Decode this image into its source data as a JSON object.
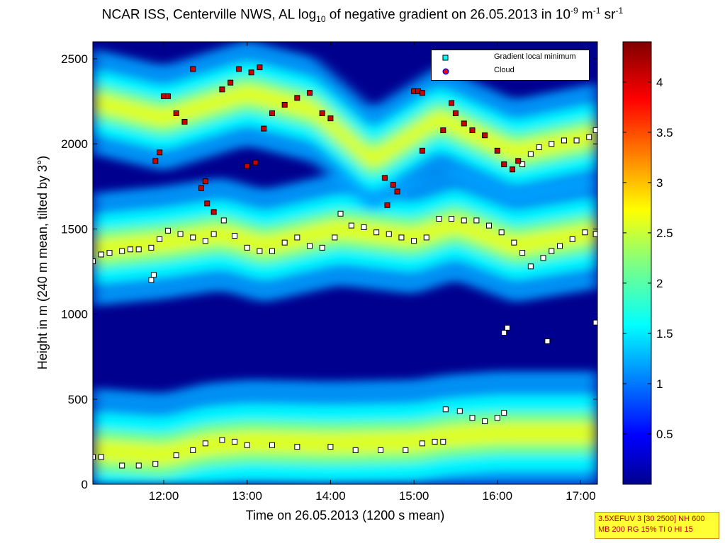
{
  "title": {
    "prefix": "NCAR ISS, Centerville NWS, AL log",
    "sub": "10",
    "mid": " of negative gradient on 26.05.2013 in 10",
    "sup1": "-9",
    "unit1": " m",
    "sup2": "-1",
    "unit2": " sr",
    "sup3": "-1"
  },
  "chart_data": {
    "type": "heatmap",
    "xlabel": "Time on 26.05.2013 (1200 s mean)",
    "ylabel": "Height in m (240 m mean, tilted by 3°)",
    "x_ticks": [
      "12:00",
      "13:00",
      "14:00",
      "15:00",
      "16:00",
      "17:00"
    ],
    "x_tick_hours": [
      12,
      13,
      14,
      15,
      16,
      17
    ],
    "xlim_hours": [
      11.15,
      17.2
    ],
    "y_ticks": [
      0,
      500,
      1000,
      1500,
      2000,
      2500
    ],
    "ylim": [
      0,
      2600
    ],
    "colorbar": {
      "ticks": [
        0.5,
        1,
        1.5,
        2,
        2.5,
        3,
        3.5,
        4
      ],
      "range": [
        0,
        4.4
      ],
      "colormap": "jet"
    },
    "layers": [
      {
        "name": "surface",
        "points": [
          [
            11.15,
            200
          ],
          [
            12.0,
            170
          ],
          [
            12.5,
            230
          ],
          [
            13.0,
            250
          ],
          [
            14.0,
            240
          ],
          [
            15.0,
            250
          ],
          [
            15.4,
            280
          ],
          [
            16.0,
            300
          ],
          [
            17.2,
            300
          ]
        ],
        "thickness": 140,
        "strength": 1.0
      },
      {
        "name": "mixed",
        "points": [
          [
            11.15,
            1380
          ],
          [
            12.0,
            1420
          ],
          [
            12.7,
            1470
          ],
          [
            13.2,
            1400
          ],
          [
            14.1,
            1500
          ],
          [
            15.0,
            1450
          ],
          [
            15.5,
            1530
          ],
          [
            16.2,
            1400
          ],
          [
            17.2,
            1480
          ]
        ],
        "thickness": 150,
        "strength": 0.85
      },
      {
        "name": "upper",
        "points": [
          [
            11.15,
            2250
          ],
          [
            12.0,
            2150
          ],
          [
            13.0,
            2300
          ],
          [
            13.8,
            2200
          ],
          [
            14.5,
            1900
          ],
          [
            15.3,
            2150
          ],
          [
            16.2,
            1950
          ],
          [
            17.2,
            2050
          ]
        ],
        "thickness": 170,
        "strength": 0.7
      }
    ],
    "series": [
      {
        "name": "Gradient local minimum",
        "marker": "square",
        "color": "#ffffff",
        "points": [
          [
            11.15,
            1310
          ],
          [
            11.25,
            1350
          ],
          [
            11.35,
            1360
          ],
          [
            11.5,
            1370
          ],
          [
            11.6,
            1380
          ],
          [
            11.7,
            1380
          ],
          [
            11.85,
            1390
          ],
          [
            11.95,
            1440
          ],
          [
            12.05,
            1490
          ],
          [
            12.2,
            1470
          ],
          [
            12.35,
            1450
          ],
          [
            12.5,
            1430
          ],
          [
            12.6,
            1470
          ],
          [
            12.72,
            1550
          ],
          [
            12.85,
            1460
          ],
          [
            13.0,
            1390
          ],
          [
            13.15,
            1370
          ],
          [
            13.3,
            1370
          ],
          [
            13.45,
            1420
          ],
          [
            13.6,
            1450
          ],
          [
            13.75,
            1400
          ],
          [
            13.9,
            1390
          ],
          [
            14.05,
            1450
          ],
          [
            14.12,
            1590
          ],
          [
            14.25,
            1520
          ],
          [
            14.4,
            1510
          ],
          [
            14.55,
            1480
          ],
          [
            14.7,
            1470
          ],
          [
            14.85,
            1450
          ],
          [
            15.0,
            1430
          ],
          [
            15.15,
            1450
          ],
          [
            15.3,
            1560
          ],
          [
            15.45,
            1560
          ],
          [
            15.6,
            1550
          ],
          [
            15.75,
            1550
          ],
          [
            15.9,
            1520
          ],
          [
            16.05,
            1480
          ],
          [
            16.2,
            1420
          ],
          [
            16.3,
            1360
          ],
          [
            16.4,
            1280
          ],
          [
            16.55,
            1330
          ],
          [
            16.65,
            1370
          ],
          [
            16.75,
            1400
          ],
          [
            16.9,
            1440
          ],
          [
            17.05,
            1480
          ],
          [
            17.18,
            1470
          ],
          [
            11.85,
            1200
          ],
          [
            11.88,
            1230
          ],
          [
            11.15,
            160
          ],
          [
            11.25,
            160
          ],
          [
            11.5,
            110
          ],
          [
            11.7,
            110
          ],
          [
            11.9,
            120
          ],
          [
            12.15,
            170
          ],
          [
            12.35,
            200
          ],
          [
            12.5,
            240
          ],
          [
            12.7,
            260
          ],
          [
            12.85,
            250
          ],
          [
            13.0,
            230
          ],
          [
            13.3,
            230
          ],
          [
            13.6,
            220
          ],
          [
            14.0,
            220
          ],
          [
            14.3,
            200
          ],
          [
            14.6,
            200
          ],
          [
            14.9,
            200
          ],
          [
            15.1,
            240
          ],
          [
            15.25,
            250
          ],
          [
            15.35,
            250
          ],
          [
            15.38,
            440
          ],
          [
            15.55,
            430
          ],
          [
            15.7,
            390
          ],
          [
            15.85,
            370
          ],
          [
            16.0,
            390
          ],
          [
            16.08,
            420
          ],
          [
            16.08,
            890
          ],
          [
            16.12,
            920
          ],
          [
            16.6,
            840
          ],
          [
            17.18,
            950
          ],
          [
            16.3,
            1880
          ],
          [
            16.4,
            1940
          ],
          [
            16.5,
            1980
          ],
          [
            16.65,
            2000
          ],
          [
            16.8,
            2020
          ],
          [
            16.95,
            2020
          ],
          [
            17.1,
            2040
          ],
          [
            17.18,
            2080
          ]
        ]
      },
      {
        "name": "Cloud",
        "marker": "square",
        "color": "#cc0000",
        "points": [
          [
            11.9,
            1900
          ],
          [
            11.95,
            1950
          ],
          [
            12.0,
            2280
          ],
          [
            12.05,
            2280
          ],
          [
            12.15,
            2180
          ],
          [
            12.25,
            2130
          ],
          [
            12.35,
            2440
          ],
          [
            12.45,
            1740
          ],
          [
            12.5,
            1780
          ],
          [
            12.52,
            1650
          ],
          [
            12.6,
            1600
          ],
          [
            12.7,
            2320
          ],
          [
            12.8,
            2360
          ],
          [
            12.9,
            2440
          ],
          [
            13.05,
            2420
          ],
          [
            13.15,
            2450
          ],
          [
            13.0,
            1870
          ],
          [
            13.1,
            1890
          ],
          [
            13.2,
            2090
          ],
          [
            13.3,
            2180
          ],
          [
            13.45,
            2230
          ],
          [
            13.6,
            2270
          ],
          [
            13.75,
            2300
          ],
          [
            13.9,
            2180
          ],
          [
            14.0,
            2150
          ],
          [
            14.65,
            1800
          ],
          [
            14.75,
            1760
          ],
          [
            14.8,
            1720
          ],
          [
            14.68,
            1640
          ],
          [
            15.0,
            2310
          ],
          [
            15.05,
            2310
          ],
          [
            15.1,
            2300
          ],
          [
            15.45,
            2240
          ],
          [
            15.5,
            2180
          ],
          [
            15.6,
            2120
          ],
          [
            15.35,
            2080
          ],
          [
            15.7,
            2080
          ],
          [
            15.85,
            2050
          ],
          [
            16.0,
            1960
          ],
          [
            16.08,
            1880
          ],
          [
            16.18,
            1850
          ],
          [
            16.25,
            1900
          ],
          [
            15.1,
            1960
          ]
        ]
      }
    ]
  },
  "legend": {
    "items": [
      "Gradient local minimum",
      "Cloud"
    ]
  },
  "info_box": {
    "line1": "3.5XEFUV 3 [30 2500] NH 600",
    "line2": "MB 200 RG 15% TI 0 HI 15"
  }
}
